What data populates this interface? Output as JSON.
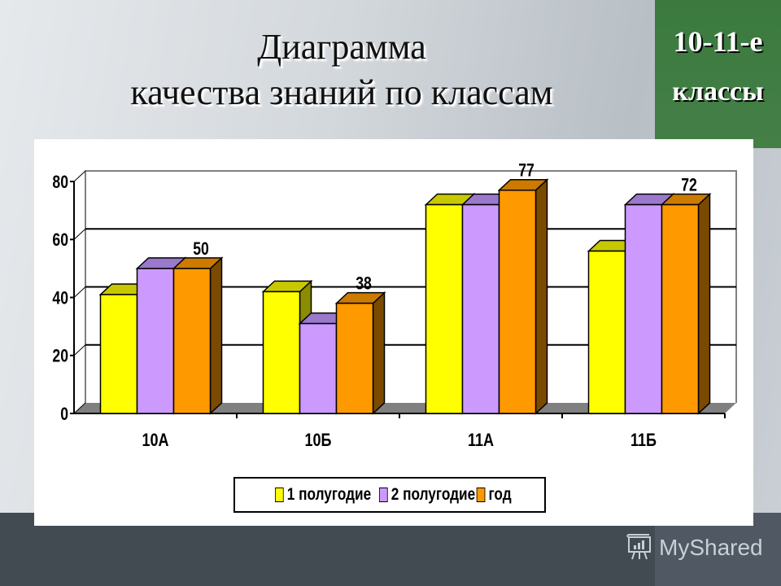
{
  "slide": {
    "title_line1": "Диаграмма",
    "title_line2": "качества знаний по классам",
    "badge_line1": "10-11-е",
    "badge_line2": "классы",
    "watermark": "MyShared",
    "colors": {
      "badge_green": "#3f7a43",
      "bottom_band": "#424a52"
    }
  },
  "chart_data": {
    "type": "bar",
    "title": "Диаграмма качества знаний по классам",
    "categories": [
      "10А",
      "10Б",
      "11А",
      "11Б"
    ],
    "series": [
      {
        "name": "1 полугодие",
        "values": [
          41,
          42,
          72,
          56
        ],
        "color": "#ffff00",
        "top": "#c8c800",
        "side": "#8c8c00"
      },
      {
        "name": "2 полугодие",
        "values": [
          50,
          31,
          72,
          72
        ],
        "color": "#cc99ff",
        "top": "#9a78cc",
        "side": "#7a5aa8"
      },
      {
        "name": "год",
        "values": [
          50,
          38,
          77,
          72
        ],
        "color": "#ff9900",
        "top": "#cc7a00",
        "side": "#7a4a00"
      }
    ],
    "data_labels": {
      "series": "год",
      "values": [
        50,
        38,
        77,
        72
      ]
    },
    "xlabel": "",
    "ylabel": "",
    "ylim": [
      0,
      80
    ],
    "yticks": [
      0,
      20,
      40,
      60,
      80
    ],
    "grid": true,
    "legend_position": "bottom",
    "style": "3d-clustered-column"
  }
}
